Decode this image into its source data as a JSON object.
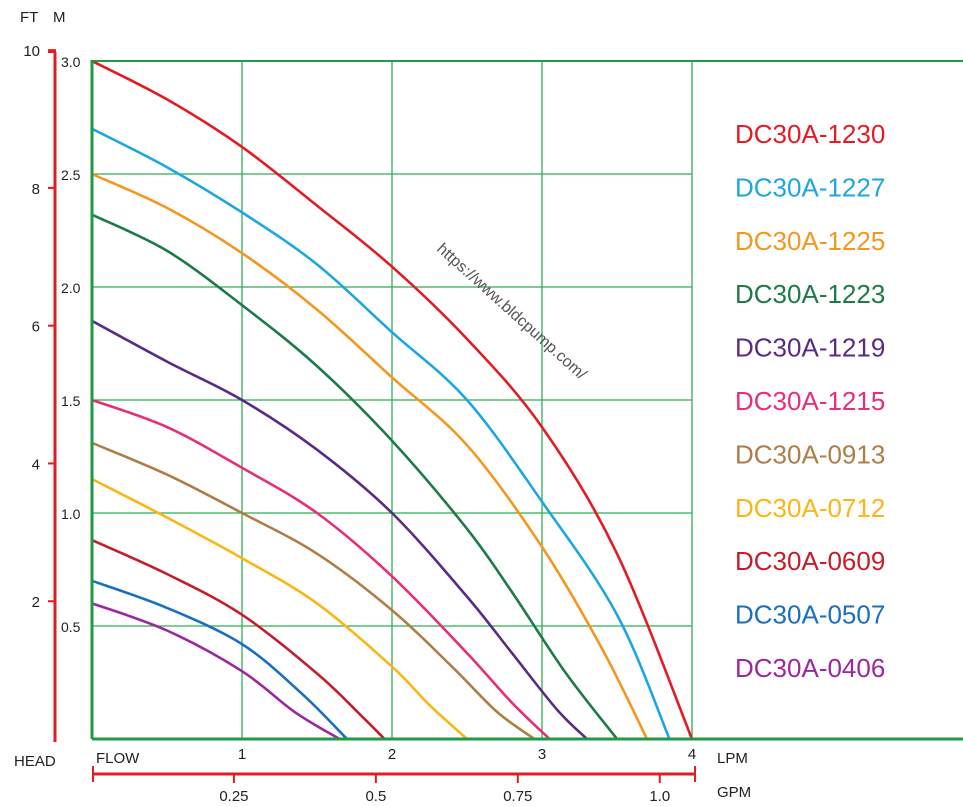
{
  "chart_data": {
    "type": "line",
    "title": "",
    "x_axis_lpm": {
      "label": "LPM",
      "corner_label": "FLOW",
      "ticks": [
        1,
        2,
        3,
        4
      ],
      "range": [
        0,
        4
      ]
    },
    "x_axis_gpm": {
      "label": "GPM",
      "ticks": [
        "0.25",
        "0.5",
        "0.75",
        "1.0"
      ],
      "tick_values": [
        0.25,
        0.5,
        0.75,
        1.0
      ]
    },
    "y_axis_m": {
      "label": "M",
      "ticks": [
        "0.5",
        "1.0",
        "1.5",
        "2.0",
        "2.5",
        "3.0"
      ],
      "tick_values": [
        0.5,
        1.0,
        1.5,
        2.0,
        2.5,
        3.0
      ],
      "range": [
        0,
        3.0
      ]
    },
    "y_axis_ft": {
      "label": "FT",
      "corner_label": "HEAD",
      "ticks": [
        "2",
        "4",
        "6",
        "8",
        "10"
      ],
      "tick_values": [
        2,
        4,
        6,
        8,
        10
      ]
    },
    "grid": true,
    "legend_position": "right",
    "watermark": "https://www.bldcpump.com/",
    "series": [
      {
        "name": "DC30A-1230",
        "color": "#e31b23",
        "x": [
          0,
          0.5,
          1,
          1.5,
          2,
          2.5,
          3,
          3.5,
          4
        ],
        "y": [
          3.0,
          2.83,
          2.62,
          2.36,
          2.09,
          1.77,
          1.38,
          0.82,
          0.0
        ]
      },
      {
        "name": "DC30A-1227",
        "color": "#1ea6e0",
        "x": [
          0,
          0.5,
          1,
          1.5,
          2,
          2.5,
          3,
          3.5,
          3.85
        ],
        "y": [
          2.7,
          2.53,
          2.33,
          2.1,
          1.8,
          1.5,
          1.05,
          0.55,
          0.0
        ]
      },
      {
        "name": "DC30A-1225",
        "color": "#f5961e",
        "x": [
          0,
          0.5,
          1,
          1.5,
          2,
          2.5,
          3,
          3.4,
          3.7
        ],
        "y": [
          2.5,
          2.35,
          2.15,
          1.9,
          1.6,
          1.3,
          0.85,
          0.4,
          0.0
        ]
      },
      {
        "name": "DC30A-1223",
        "color": "#1e7a48",
        "x": [
          0,
          0.5,
          1,
          1.5,
          2,
          2.5,
          2.8,
          3.15,
          3.5
        ],
        "y": [
          2.32,
          2.16,
          1.92,
          1.65,
          1.32,
          0.93,
          0.65,
          0.3,
          0.0
        ]
      },
      {
        "name": "DC30A-1219",
        "color": "#5b2a86",
        "x": [
          0,
          0.5,
          1,
          1.5,
          2,
          2.5,
          2.8,
          3.1,
          3.3
        ],
        "y": [
          1.85,
          1.67,
          1.5,
          1.28,
          1.0,
          0.63,
          0.38,
          0.13,
          0.0
        ]
      },
      {
        "name": "DC30A-1215",
        "color": "#e62e7a",
        "x": [
          0,
          0.5,
          1,
          1.5,
          2,
          2.5,
          2.8,
          3.05
        ],
        "y": [
          1.5,
          1.38,
          1.2,
          1.0,
          0.72,
          0.38,
          0.16,
          0.0
        ]
      },
      {
        "name": "DC30A-0913",
        "color": "#b07d47",
        "x": [
          0,
          0.5,
          1,
          1.5,
          2,
          2.4,
          2.7,
          2.95
        ],
        "y": [
          1.31,
          1.17,
          1.0,
          0.82,
          0.57,
          0.32,
          0.12,
          0.0
        ]
      },
      {
        "name": "DC30A-0712",
        "color": "#fbb616",
        "x": [
          0,
          0.5,
          1,
          1.5,
          2,
          2.25,
          2.5
        ],
        "y": [
          1.15,
          0.98,
          0.8,
          0.6,
          0.32,
          0.15,
          0.0
        ]
      },
      {
        "name": "DC30A-0609",
        "color": "#c41e2c",
        "x": [
          0,
          0.5,
          1,
          1.5,
          1.8,
          1.95
        ],
        "y": [
          0.88,
          0.73,
          0.55,
          0.29,
          0.1,
          0.0
        ]
      },
      {
        "name": "DC30A-0507",
        "color": "#1a6fc0",
        "x": [
          0,
          0.5,
          1,
          1.4,
          1.7
        ],
        "y": [
          0.7,
          0.58,
          0.42,
          0.2,
          0.0
        ]
      },
      {
        "name": "DC30A-0406",
        "color": "#9c27a0",
        "x": [
          0,
          0.5,
          1,
          1.35,
          1.65
        ],
        "y": [
          0.6,
          0.48,
          0.3,
          0.12,
          0.0
        ]
      }
    ]
  }
}
